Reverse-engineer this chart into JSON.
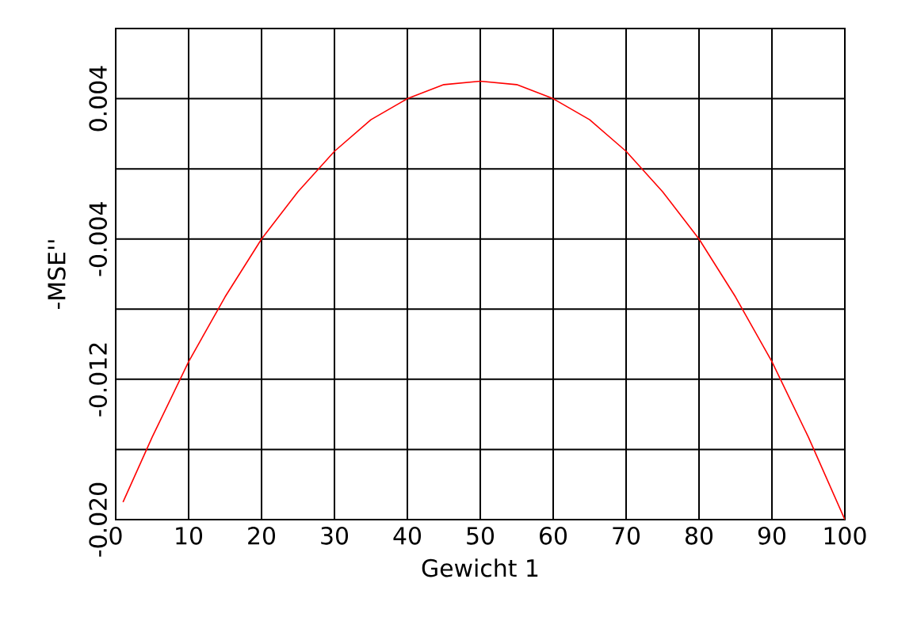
{
  "chart_data": {
    "type": "line",
    "xlabel": "Gewicht 1",
    "ylabel": "-MSE''",
    "x": [
      1,
      5,
      10,
      15,
      20,
      25,
      30,
      35,
      40,
      45,
      50,
      55,
      60,
      65,
      70,
      75,
      80,
      85,
      90,
      95,
      100
    ],
    "series": [
      {
        "color": "#ff0000",
        "values": [
          -0.019,
          -0.0153,
          -0.011,
          -0.0073,
          -0.004,
          -0.0013,
          0.001,
          0.0028,
          0.004,
          0.0048,
          0.005,
          0.0048,
          0.004,
          0.0028,
          0.001,
          -0.0013,
          -0.004,
          -0.0073,
          -0.011,
          -0.0153,
          -0.02
        ]
      }
    ],
    "xlim": [
      0,
      100
    ],
    "ylim": [
      -0.02,
      0.008
    ],
    "xticks": [
      0,
      10,
      20,
      30,
      40,
      50,
      60,
      70,
      80,
      90,
      100
    ],
    "yticks": [
      {
        "value": -0.02,
        "label": "-0.020"
      },
      {
        "value": -0.016,
        "label": null
      },
      {
        "value": -0.012,
        "label": "-0.012"
      },
      {
        "value": -0.008,
        "label": null
      },
      {
        "value": -0.004,
        "label": "-0.004"
      },
      {
        "value": 0,
        "label": null
      },
      {
        "value": 0.004,
        "label": "0.004"
      },
      {
        "value": 0.008,
        "label": null
      }
    ],
    "grid": true,
    "marker": "none"
  }
}
